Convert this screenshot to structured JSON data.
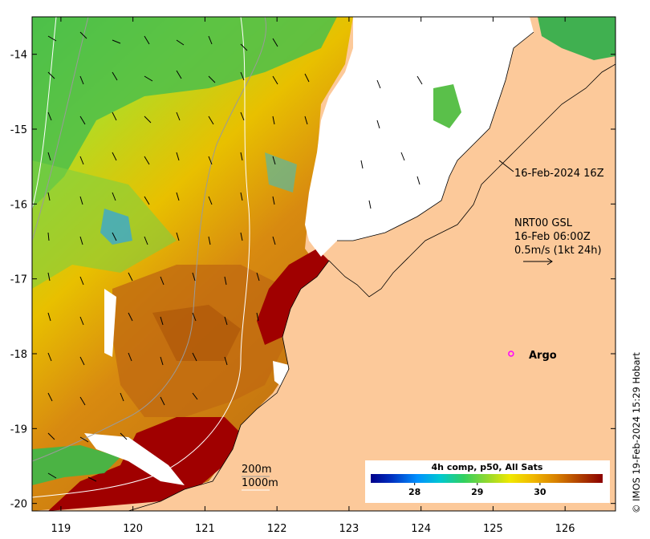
{
  "map": {
    "x_ticks": [
      "119",
      "120",
      "121",
      "122",
      "123",
      "124",
      "125",
      "126"
    ],
    "x_tick_values": [
      119,
      120,
      121,
      122,
      123,
      124,
      125,
      126
    ],
    "y_ticks": [
      "-14",
      "-15",
      "-16",
      "-17",
      "-18",
      "-19",
      "-20"
    ],
    "y_tick_values": [
      -14,
      -15,
      -16,
      -17,
      -18,
      -19,
      -20
    ],
    "lon_range": [
      118.6,
      126.7
    ],
    "lat_range": [
      -20.1,
      -13.5
    ],
    "colors": {
      "land": "#fcc99a",
      "no_data": "#ffffff",
      "coast": "#000000"
    }
  },
  "annotations": {
    "track_label": "16-Feb-2024 16Z",
    "current_line1": "NRT00 GSL",
    "current_line2": "16-Feb 06:00Z",
    "current_line3": "0.5m/s (1kt 24h)",
    "argo_label": "Argo",
    "argo_lon": 125.25,
    "argo_lat": -18.0,
    "argo_color": "#ff00ff",
    "contour1": "200m",
    "contour2": "1000m"
  },
  "colorbar": {
    "title": "4h comp, p50, All Sats",
    "ticks": [
      "28",
      "29",
      "30"
    ],
    "tick_values": [
      28,
      29,
      30
    ],
    "range": [
      27.3,
      31.0
    ],
    "colors": [
      "#00008b",
      "#0040c0",
      "#0080ff",
      "#00bcd8",
      "#20d080",
      "#40c040",
      "#a0d820",
      "#f0e800",
      "#f0c000",
      "#e09000",
      "#c06000",
      "#8b0000"
    ]
  },
  "credit": "© IMOS 19-Feb-2024 15:29 Hobart"
}
